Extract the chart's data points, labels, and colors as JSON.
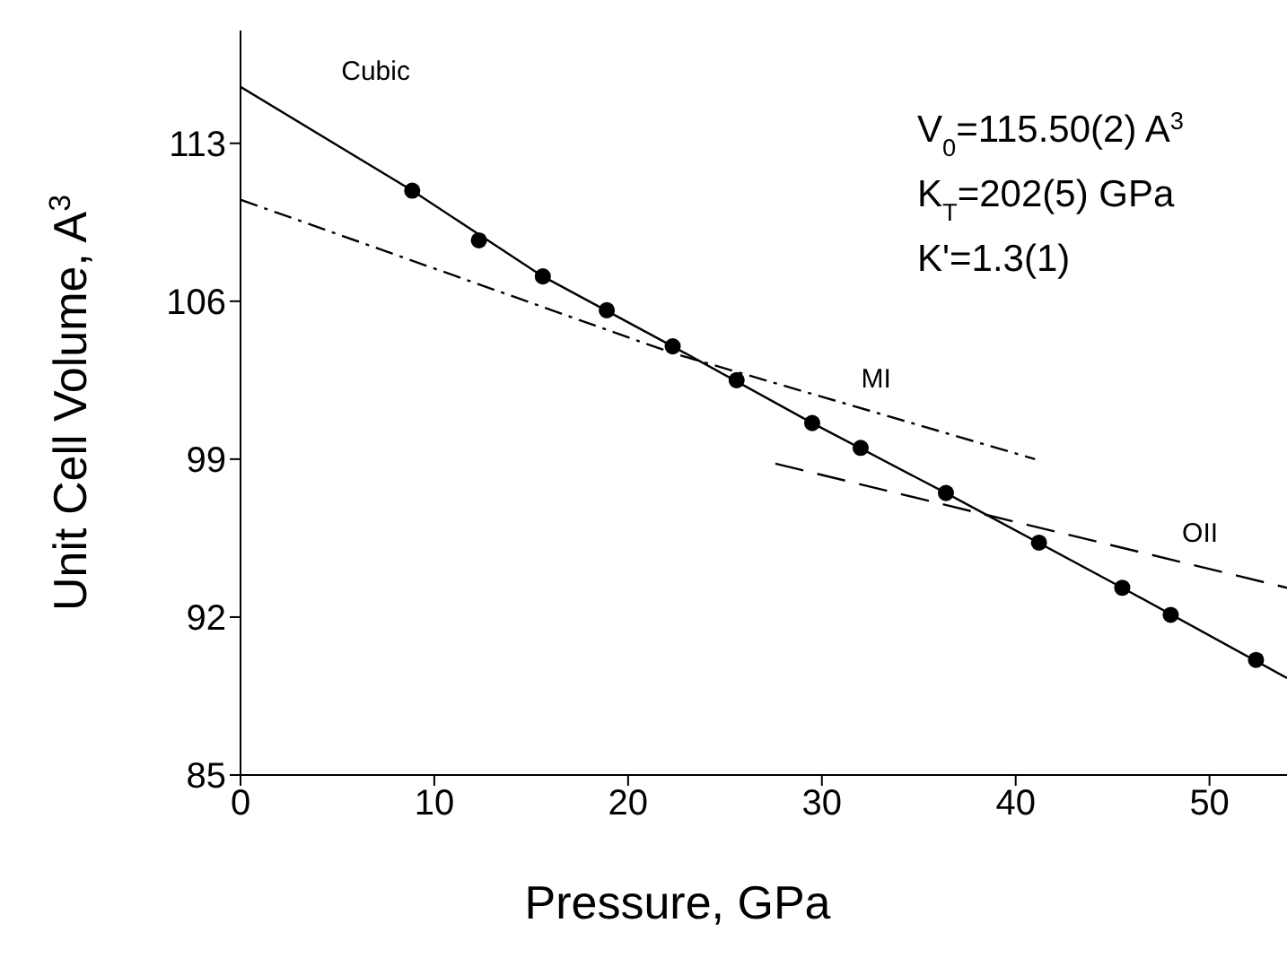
{
  "chart_data": {
    "type": "scatter",
    "xlabel": "Pressure, GPa",
    "ylabel": "Unit Cell Volume, A$^{3}$",
    "xlim": [
      0,
      54
    ],
    "ylim": [
      85,
      118
    ],
    "xticks": [
      0,
      10,
      20,
      30,
      40,
      50
    ],
    "yticks": [
      85,
      92,
      99,
      106,
      113
    ],
    "grid": false,
    "legend": false,
    "marker": "circle",
    "series": [
      {
        "color": "#000000",
        "x": [
          8.86,
          12.3,
          15.6,
          18.9,
          22.3,
          25.6,
          29.5,
          32.0,
          36.4,
          41.2,
          45.5,
          48.0,
          52.4
        ],
        "values": [
          110.9,
          108.7,
          107.1,
          105.6,
          104.0,
          102.5,
          100.6,
          99.5,
          97.5,
          95.3,
          93.3,
          92.1,
          90.1
        ]
      },
      {
        "name": "Cubic",
        "type": "line",
        "color": "#000000",
        "marker": "none",
        "line_style": "solid",
        "x": [
          0,
          8.86,
          15.6,
          22.3,
          29.5,
          36.4,
          45.5,
          54
        ],
        "values": [
          115.5,
          110.9,
          107.1,
          104.0,
          100.6,
          97.5,
          93.3,
          89.3
        ]
      },
      {
        "name": "MI",
        "type": "line",
        "color": "#000000",
        "marker": "none",
        "line_style": "dashdot",
        "x": [
          0,
          22.3,
          41.0
        ],
        "values": [
          110.5,
          103.7,
          99.0
        ]
      },
      {
        "name": "OII",
        "type": "line",
        "color": "#000000",
        "marker": "none",
        "line_style": "dashed",
        "x": [
          27.6,
          54
        ],
        "values": [
          98.8,
          93.3
        ]
      }
    ],
    "annotations": [
      "V$_{0}$=115.50(2) A$^{3}$",
      "K$_{T}$=202(5) GPa",
      "K'=1.3(1)"
    ]
  }
}
